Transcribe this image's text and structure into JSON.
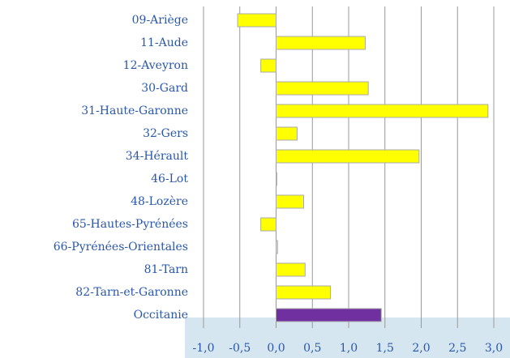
{
  "chart_data": {
    "type": "barh",
    "categories": [
      "09-Ariège",
      "11-Aude",
      "12-Aveyron",
      "30-Gard",
      "31-Haute-Garonne",
      "32-Gers",
      "34-Hérault",
      "46-Lot",
      "48-Lozère",
      "65-Hautes-Pyrénées",
      "66-Pyrénées-Orientales",
      "81-Tarn",
      "82-Tarn-et-Garonne",
      "Occitanie"
    ],
    "values": [
      -0.53,
      1.23,
      -0.21,
      1.27,
      2.92,
      0.29,
      1.97,
      0.01,
      0.38,
      -0.21,
      0.02,
      0.4,
      0.75,
      1.45
    ],
    "colors": [
      "#ffff00",
      "#ffff00",
      "#ffff00",
      "#ffff00",
      "#ffff00",
      "#ffff00",
      "#ffff00",
      "#ffff00",
      "#ffff00",
      "#ffff00",
      "#ffff00",
      "#ffff00",
      "#ffff00",
      "#7030a0"
    ],
    "xlim": [
      -1.0,
      3.0
    ],
    "xticks": [
      {
        "value": -1.0,
        "label": "-1,0"
      },
      {
        "value": -0.5,
        "label": "-0,5"
      },
      {
        "value": 0,
        "label": "0,0"
      },
      {
        "value": 0.5,
        "label": "0,5"
      },
      {
        "value": 1.0,
        "label": "1,0"
      },
      {
        "value": 1.5,
        "label": "1,5"
      },
      {
        "value": 2.0,
        "label": "2,0"
      },
      {
        "value": 2.5,
        "label": "2,5"
      },
      {
        "value": 3.0,
        "label": "3,0"
      }
    ],
    "grid": true
  }
}
